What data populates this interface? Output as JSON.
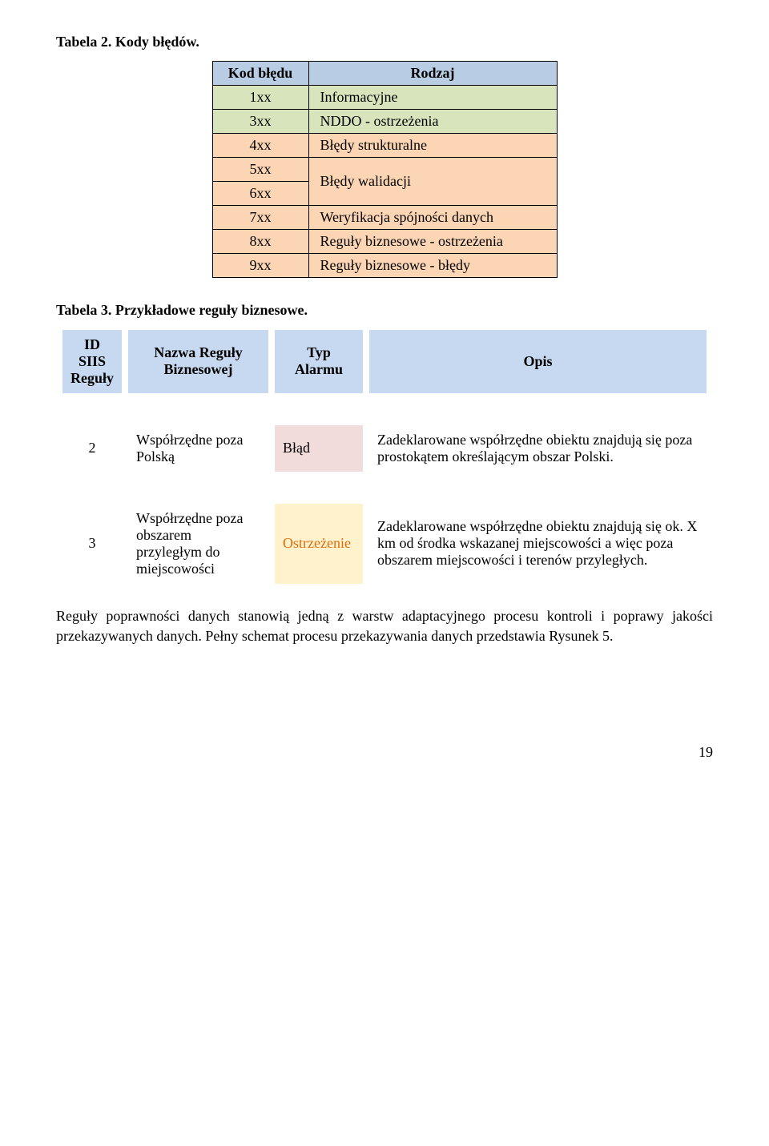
{
  "heading1": "Tabela 2. Kody błędów.",
  "codes": {
    "header": {
      "code": "Kod błędu",
      "rodzaj": "Rodzaj"
    },
    "rows": [
      {
        "code": "1xx",
        "rodzaj": "Informacyjne"
      },
      {
        "code": "3xx",
        "rodzaj": "NDDO - ostrzeżenia"
      },
      {
        "code": "4xx",
        "rodzaj": "Błędy strukturalne"
      },
      {
        "code": "5xx",
        "rodzaj": "Błędy walidacji",
        "merged_with_next": true
      },
      {
        "code": "6xx"
      },
      {
        "code": "7xx",
        "rodzaj": "Weryfikacja spójności danych"
      },
      {
        "code": "8xx",
        "rodzaj": "Reguły biznesowe - ostrzeżenia"
      },
      {
        "code": "9xx",
        "rodzaj": "Reguły biznesowe - błędy"
      }
    ]
  },
  "heading2": "Tabela 3. Przykładowe reguły biznesowe.",
  "rules": {
    "headers": {
      "id": "ID SIIS Reguły",
      "name": "Nazwa Reguły Biznesowej",
      "type": "Typ Alarmu",
      "desc": "Opis"
    },
    "rows": [
      {
        "id": "2",
        "name": "Współrzędne poza Polską",
        "type": "Błąd",
        "type_style": "pink",
        "desc": "Zadeklarowane współrzędne obiektu znajdują się poza prostokątem określającym obszar Polski."
      },
      {
        "id": "3",
        "name": "Współrzędne poza obszarem przyległym do miejscowości",
        "type": "Ostrzeżenie",
        "type_style": "yellow",
        "desc": "Zadeklarowane współrzędne obiektu znajdują się ok. X km od środka wskazanej miejscowości a więc poza obszarem miejscowości i terenów przyległych."
      }
    ]
  },
  "paragraph": "Reguły poprawności danych stanowią jedną z warstw adaptacyjnego procesu kontroli i poprawy jakości przekazywanych danych. Pełny schemat procesu przekazywania danych przedstawia Rysunek 5.",
  "page_number": "19",
  "colors": {
    "header_blue": "#b8cce4",
    "row_green": "#d7e4bc",
    "row_peach": "#fcd5b4",
    "rules_header": "#c6d9f0",
    "cell_pink": "#f2dbdb",
    "cell_yellow": "#fff2cc",
    "yellow_text": "#e26b0a"
  }
}
